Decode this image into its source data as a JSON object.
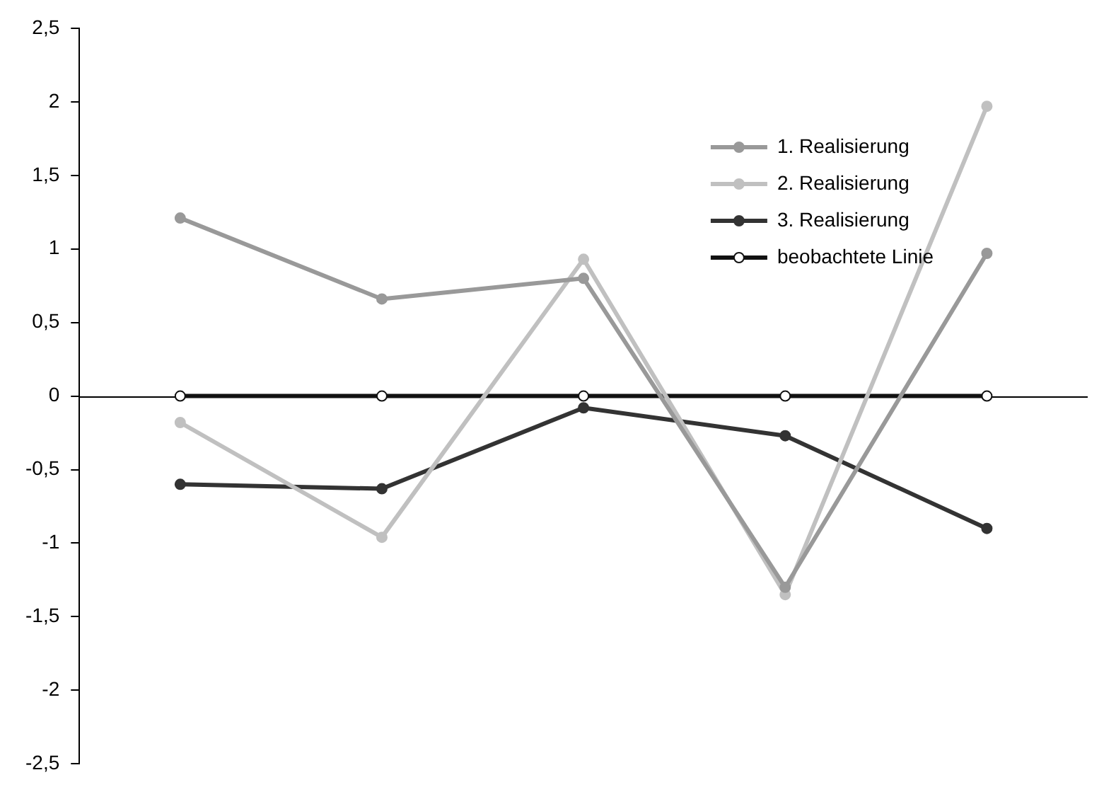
{
  "chart_data": {
    "type": "line",
    "categories": [
      null,
      null,
      null,
      null,
      null
    ],
    "series": [
      {
        "name": "1. Realisierung",
        "color": "#999999",
        "values": [
          1.21,
          0.66,
          0.8,
          -1.3,
          0.97
        ]
      },
      {
        "name": "2. Realisierung",
        "color": "#c0c0c0",
        "values": [
          -0.18,
          -0.96,
          0.93,
          -1.35,
          1.97
        ]
      },
      {
        "name": "3. Realisierung",
        "color": "#333333",
        "values": [
          -0.6,
          -0.63,
          -0.08,
          -0.27,
          -0.9
        ]
      },
      {
        "name": "beobachtete Linie",
        "color": "#111111",
        "values": [
          0,
          0,
          0,
          0,
          0
        ]
      }
    ],
    "ylim": [
      -2.5,
      2.5
    ],
    "yticks": [
      {
        "value": -2.5,
        "label": "-2,5"
      },
      {
        "value": -2,
        "label": "-2"
      },
      {
        "value": -1.5,
        "label": "-1,5"
      },
      {
        "value": -1,
        "label": "-1"
      },
      {
        "value": -0.5,
        "label": "-0,5"
      },
      {
        "value": 0,
        "label": "0"
      },
      {
        "value": 0.5,
        "label": "0,5"
      },
      {
        "value": 1,
        "label": "1"
      },
      {
        "value": 1.5,
        "label": "1,5"
      },
      {
        "value": 2,
        "label": "2"
      },
      {
        "value": 2.5,
        "label": "2,5"
      }
    ],
    "ref_lines": [
      {
        "axis": "y",
        "value": 0,
        "color": "#000000"
      }
    ],
    "grid": false,
    "legend": "top right",
    "marker": "circle",
    "line_style": "solid"
  }
}
